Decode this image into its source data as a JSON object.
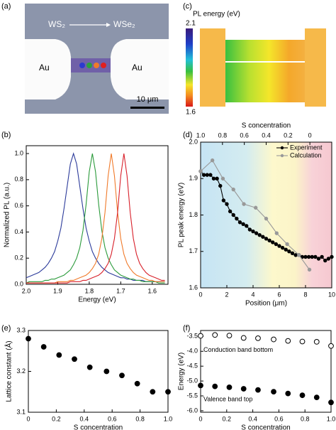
{
  "image_a": {
    "panel": "(a)",
    "arrow_from": "WS₂",
    "arrow_to": "WSe₂",
    "left_electrode": "Au",
    "right_electrode": "Au",
    "scale_bar": "10 μm"
  },
  "image_c": {
    "panel": "(c)",
    "colorbar_label": "PL energy (eV)",
    "colorbar_max": 2.1,
    "colorbar_min": 1.6
  },
  "chart_data": [
    {
      "type": "line",
      "panel": "(b)",
      "xlabel": "Energy (eV)",
      "ylabel": "Normalized PL (a.u.)",
      "x": [
        2.0,
        1.99,
        1.98,
        1.97,
        1.96,
        1.95,
        1.94,
        1.93,
        1.92,
        1.91,
        1.9,
        1.89,
        1.88,
        1.87,
        1.86,
        1.85,
        1.84,
        1.83,
        1.82,
        1.81,
        1.8,
        1.79,
        1.78,
        1.77,
        1.76,
        1.75,
        1.74,
        1.73,
        1.72,
        1.71,
        1.7,
        1.69,
        1.68,
        1.67,
        1.66,
        1.65,
        1.64,
        1.63,
        1.62,
        1.61,
        1.6,
        1.59,
        1.58,
        1.57,
        1.56
      ],
      "series": [
        {
          "color": "#2b3a9a",
          "values": [
            0.05,
            0.06,
            0.07,
            0.08,
            0.09,
            0.11,
            0.13,
            0.16,
            0.2,
            0.25,
            0.33,
            0.43,
            0.58,
            0.75,
            0.92,
            1.0,
            0.92,
            0.75,
            0.58,
            0.43,
            0.33,
            0.25,
            0.2,
            0.16,
            0.13,
            0.11,
            0.09,
            0.08,
            0.07,
            0.06,
            0.05,
            0.05,
            0.04,
            0.04,
            0.03,
            0.03,
            0.03,
            0.03,
            0.02,
            0.02,
            0.02,
            0.02,
            0.02,
            0.02,
            0.02
          ]
        },
        {
          "color": "#2a9a3a",
          "values": [
            0.01,
            0.02,
            0.02,
            0.02,
            0.02,
            0.02,
            0.03,
            0.03,
            0.04,
            0.04,
            0.05,
            0.06,
            0.07,
            0.09,
            0.11,
            0.15,
            0.2,
            0.28,
            0.41,
            0.61,
            0.86,
            1.0,
            0.86,
            0.61,
            0.41,
            0.28,
            0.2,
            0.15,
            0.11,
            0.09,
            0.07,
            0.06,
            0.05,
            0.04,
            0.04,
            0.03,
            0.03,
            0.02,
            0.02,
            0.02,
            0.02,
            0.02,
            0.01,
            0.01,
            0.01
          ]
        },
        {
          "color": "#f07a2a",
          "values": [
            0.01,
            0.01,
            0.01,
            0.01,
            0.01,
            0.01,
            0.01,
            0.01,
            0.01,
            0.01,
            0.02,
            0.02,
            0.02,
            0.02,
            0.03,
            0.03,
            0.04,
            0.05,
            0.06,
            0.07,
            0.09,
            0.12,
            0.16,
            0.23,
            0.35,
            0.55,
            0.83,
            1.0,
            0.83,
            0.55,
            0.35,
            0.23,
            0.16,
            0.12,
            0.09,
            0.07,
            0.06,
            0.05,
            0.04,
            0.03,
            0.03,
            0.02,
            0.02,
            0.02,
            0.02
          ]
        },
        {
          "color": "#d8202a",
          "values": [
            0.01,
            0.01,
            0.01,
            0.01,
            0.01,
            0.01,
            0.01,
            0.01,
            0.01,
            0.01,
            0.01,
            0.01,
            0.01,
            0.01,
            0.02,
            0.02,
            0.02,
            0.02,
            0.03,
            0.03,
            0.04,
            0.05,
            0.06,
            0.07,
            0.09,
            0.12,
            0.16,
            0.23,
            0.35,
            0.55,
            0.83,
            1.0,
            0.83,
            0.55,
            0.35,
            0.23,
            0.16,
            0.12,
            0.09,
            0.07,
            0.06,
            0.05,
            0.04,
            0.03,
            0.03
          ]
        }
      ],
      "xlim": [
        2.0,
        1.55
      ],
      "xticks": [
        {
          "value": 2,
          "label": "2.0"
        },
        1.9,
        1.8,
        1.7,
        1.6
      ],
      "ylim": [
        0,
        1.06
      ],
      "yticks": [
        {
          "value": 0,
          "label": "0.0"
        },
        0.2,
        0.4,
        0.6,
        0.8,
        {
          "value": 1,
          "label": "1.0"
        }
      ]
    },
    {
      "type": "line",
      "panel": "(d)",
      "xlabel": "Position (μm)",
      "ylabel": "PL peak energy (eV)",
      "x2label": "S concentration",
      "legend": "upper right",
      "series": [
        {
          "name": "Experiment",
          "color": "#000000",
          "marker": "filled",
          "x": [
            0,
            0.25,
            0.5,
            0.75,
            1.0,
            1.25,
            1.5,
            1.75,
            2.0,
            2.25,
            2.5,
            2.75,
            3.0,
            3.25,
            3.5,
            3.75,
            4.0,
            4.25,
            4.5,
            4.75,
            5.0,
            5.25,
            5.5,
            5.75,
            6.0,
            6.25,
            6.5,
            6.75,
            7.0,
            7.25,
            7.5,
            7.75,
            8.0,
            8.25,
            8.5,
            8.75,
            9.0,
            9.25,
            9.5,
            9.75,
            10
          ],
          "values": [
            1.92,
            1.91,
            1.91,
            1.91,
            1.9,
            1.9,
            1.88,
            1.84,
            1.83,
            1.81,
            1.8,
            1.79,
            1.78,
            1.775,
            1.77,
            1.76,
            1.755,
            1.75,
            1.745,
            1.74,
            1.735,
            1.73,
            1.725,
            1.72,
            1.715,
            1.71,
            1.705,
            1.7,
            1.695,
            1.69,
            1.69,
            1.685,
            1.685,
            1.685,
            1.685,
            1.685,
            1.68,
            1.685,
            1.675,
            1.68,
            1.685
          ]
        },
        {
          "name": "Calculation",
          "color": "#999999",
          "marker": "filled",
          "x": [
            0,
            0.9,
            1.7,
            2.5,
            3.3,
            4.2,
            5.0,
            5.8,
            6.6,
            7.5,
            8.3
          ],
          "values": [
            1.92,
            1.95,
            1.9,
            1.87,
            1.83,
            1.82,
            1.79,
            1.75,
            1.72,
            1.69,
            1.65
          ]
        }
      ],
      "xlim": [
        0,
        10
      ],
      "xticks": [
        0,
        2,
        4,
        6,
        8,
        10
      ],
      "x2lim": [
        1.0,
        -0.2
      ],
      "x2ticks": [
        {
          "value": 1,
          "label": "1.0"
        },
        0.8,
        0.6,
        0.4,
        0.2,
        0
      ],
      "ylim": [
        1.6,
        2.0
      ],
      "yticks": [
        1.6,
        1.7,
        1.8,
        1.9,
        {
          "value": 2,
          "label": "2.0"
        }
      ]
    },
    {
      "type": "scatter",
      "panel": "(e)",
      "xlabel": "S concentration",
      "ylabel": "Lattice constant (Å)",
      "x": [
        0,
        0.11,
        0.22,
        0.33,
        0.44,
        0.56,
        0.67,
        0.78,
        0.89,
        1.0
      ],
      "series": [
        {
          "color": "#000000",
          "marker": "filled",
          "values": [
            3.28,
            3.26,
            3.24,
            3.23,
            3.21,
            3.2,
            3.19,
            3.17,
            3.15,
            3.15
          ]
        }
      ],
      "xlim": [
        0,
        1
      ],
      "xticks": [
        0,
        0.2,
        0.4,
        0.6,
        0.8,
        {
          "value": 1,
          "label": "1.0"
        }
      ],
      "ylim": [
        3.1,
        3.3
      ],
      "yticks": [
        3.1,
        3.2,
        3.3
      ]
    },
    {
      "type": "scatter",
      "panel": "(f)",
      "xlabel": "S concentration",
      "ylabel": "Energy (eV)",
      "legend": "inline",
      "x": [
        0,
        0.11,
        0.22,
        0.33,
        0.44,
        0.56,
        0.67,
        0.78,
        0.89,
        1.0
      ],
      "series": [
        {
          "name": "Conduction band bottom",
          "color": "#000000",
          "marker": "open",
          "values": [
            -3.48,
            -3.45,
            -3.47,
            -3.55,
            -3.56,
            -3.6,
            -3.65,
            -3.67,
            -3.68,
            -3.82
          ]
        },
        {
          "name": "Valence band top",
          "color": "#000000",
          "marker": "filled",
          "values": [
            -5.15,
            -5.18,
            -5.21,
            -5.26,
            -5.3,
            -5.36,
            -5.42,
            -5.48,
            -5.55,
            -5.72
          ]
        }
      ],
      "xlim": [
        0,
        1
      ],
      "xticks": [
        0,
        0.2,
        0.4,
        0.6,
        0.8,
        {
          "value": 1,
          "label": "1.0"
        }
      ],
      "ylim": [
        -6.05,
        -3.3
      ],
      "yticks": [
        {
          "value": -6,
          "label": "-6.0"
        },
        -5.5,
        {
          "value": -5,
          "label": "-5.0"
        },
        -4.5,
        {
          "value": -4,
          "label": "-4.0"
        },
        -3.5
      ]
    }
  ]
}
